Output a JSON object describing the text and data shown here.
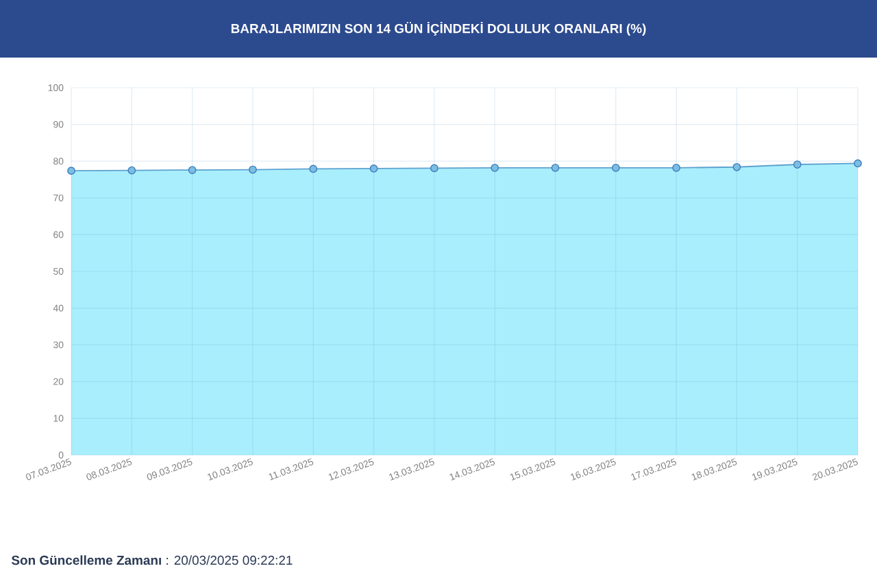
{
  "chart_data": {
    "type": "area",
    "title": "BARAJLARIMIZIN SON 14 GÜN İÇİNDEKİ DOLULUK ORANLARI (%)",
    "categories": [
      "07.03.2025",
      "08.03.2025",
      "09.03.2025",
      "10.03.2025",
      "11.03.2025",
      "12.03.2025",
      "13.03.2025",
      "14.03.2025",
      "15.03.2025",
      "16.03.2025",
      "17.03.2025",
      "18.03.2025",
      "19.03.2025",
      "20.03.2025"
    ],
    "values": [
      77.4,
      77.5,
      77.6,
      77.7,
      77.9,
      78.0,
      78.1,
      78.2,
      78.2,
      78.2,
      78.2,
      78.4,
      79.1,
      79.4
    ],
    "color": "#a9eefc",
    "marker": "circle",
    "grid": true,
    "ylim": [
      0,
      100
    ],
    "yticks": [
      0,
      10,
      20,
      30,
      40,
      50,
      60,
      70,
      80,
      90,
      100
    ],
    "annotations": [
      "**Son Güncelleme Zamanı** : 20/03/2025 09:22:21"
    ]
  }
}
